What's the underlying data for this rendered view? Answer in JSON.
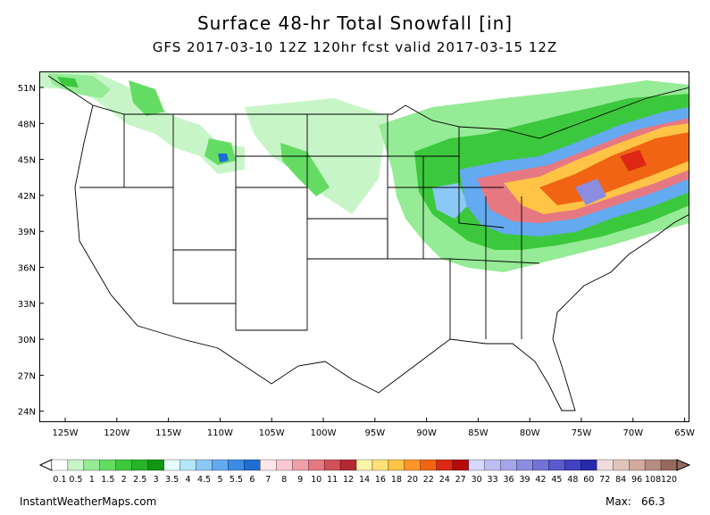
{
  "header": {
    "title": "Surface 48-hr Total Snowfall [in]",
    "subtitle": "GFS 2017-03-10 12Z 120hr fcst valid 2017-03-15 12Z"
  },
  "axes": {
    "lat_labels": [
      "51N",
      "48N",
      "45N",
      "42N",
      "39N",
      "36N",
      "33N",
      "30N",
      "27N",
      "24N"
    ],
    "lon_labels": [
      "125W",
      "120W",
      "115W",
      "110W",
      "105W",
      "100W",
      "95W",
      "90W",
      "85W",
      "80W",
      "75W",
      "70W",
      "65W"
    ]
  },
  "colorbar": {
    "labels": [
      "0.1",
      "0.5",
      "1",
      "1.5",
      "2",
      "2.5",
      "3",
      "3.5",
      "4",
      "4.5",
      "5",
      "5.5",
      "6",
      "7",
      "8",
      "9",
      "10",
      "11",
      "12",
      "14",
      "16",
      "18",
      "20",
      "22",
      "24",
      "27",
      "30",
      "33",
      "36",
      "39",
      "42",
      "45",
      "48",
      "60",
      "72",
      "84",
      "96",
      "108",
      "120"
    ],
    "colors": [
      "#ffffff",
      "#c8f5c8",
      "#96eb96",
      "#64dc64",
      "#3cc83c",
      "#28b428",
      "#149614",
      "#e6ffff",
      "#b4e6fa",
      "#8cc8f5",
      "#64aaf0",
      "#3c8ce6",
      "#1e6ed2",
      "#ffe6eb",
      "#fac8d2",
      "#f0a0aa",
      "#e67882",
      "#d2505a",
      "#b42832",
      "#fff5aa",
      "#ffe178",
      "#ffc346",
      "#ff9628",
      "#f06414",
      "#dc2814",
      "#b40a0a",
      "#d7d7ff",
      "#bebef5",
      "#a5a5eb",
      "#8c8ce1",
      "#7373d7",
      "#5a5acd",
      "#4141c3",
      "#2828aa",
      "#f0dcdc",
      "#e1c3be",
      "#d2aaa0",
      "#b48c82",
      "#96695f"
    ]
  },
  "footer": {
    "source": "InstantWeatherMaps.com",
    "max_label": "Max:",
    "max_value": "66.3"
  }
}
